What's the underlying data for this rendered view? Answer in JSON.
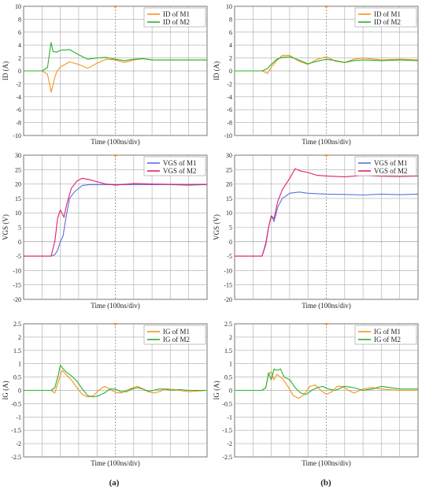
{
  "captions": [
    "(a)",
    "(b)"
  ],
  "chart_data": [
    {
      "id": "id-a",
      "type": "line",
      "xlabel": "Time (100ns/div)",
      "ylabel": "ID (A)",
      "ylim": [
        -10,
        10
      ],
      "yticks": [
        -10,
        -8,
        -6,
        -4,
        -2,
        0,
        2,
        4,
        6,
        8,
        10
      ],
      "xlim": [
        0,
        10
      ],
      "grid": true,
      "legend": "top-right",
      "series": [
        {
          "name": "ID of M1",
          "color": "#f7931e",
          "x": [
            0,
            1,
            1.3,
            1.45,
            1.5,
            1.6,
            1.7,
            1.8,
            2.0,
            2.5,
            3.0,
            3.5,
            4.0,
            4.5,
            5.0,
            5.5,
            6.0,
            6.5,
            7.0,
            8.0,
            9.0,
            10.0
          ],
          "y": [
            0,
            0,
            -0.5,
            -2.5,
            -3.3,
            -2.2,
            -1.0,
            -0.2,
            0.6,
            1.4,
            1.0,
            0.4,
            1.2,
            1.8,
            1.7,
            1.3,
            1.7,
            1.9,
            1.7,
            1.7,
            1.7,
            1.7
          ]
        },
        {
          "name": "ID of M2",
          "color": "#2bb02b",
          "x": [
            0,
            1,
            1.3,
            1.45,
            1.5,
            1.6,
            1.8,
            2.0,
            2.5,
            3.0,
            3.5,
            4.0,
            4.5,
            5.0,
            5.5,
            6.0,
            6.5,
            7.0,
            8.0,
            9.0,
            10.0
          ],
          "y": [
            0,
            0,
            0.5,
            3.5,
            4.4,
            3.0,
            2.9,
            3.2,
            3.3,
            2.5,
            1.8,
            2.0,
            2.1,
            1.8,
            1.6,
            1.8,
            1.9,
            1.7,
            1.7,
            1.7,
            1.7
          ]
        }
      ]
    },
    {
      "id": "id-b",
      "type": "line",
      "xlabel": "Time (100ns/div)",
      "ylabel": "ID (A)",
      "ylim": [
        -10,
        10
      ],
      "yticks": [
        -10,
        -8,
        -6,
        -4,
        -2,
        0,
        2,
        4,
        6,
        8,
        10
      ],
      "xlim": [
        0,
        10
      ],
      "grid": true,
      "legend": "top-right",
      "series": [
        {
          "name": "ID of M1",
          "color": "#f7931e",
          "x": [
            0,
            1.5,
            1.8,
            2.0,
            2.3,
            2.6,
            3.0,
            3.5,
            4.0,
            4.5,
            5.0,
            5.5,
            6.0,
            6.5,
            7.0,
            8.0,
            9.0,
            10.0
          ],
          "y": [
            0,
            0,
            -0.4,
            0.6,
            1.6,
            2.4,
            2.4,
            1.5,
            1.0,
            1.8,
            2.2,
            1.5,
            1.3,
            1.8,
            2.0,
            1.7,
            1.8,
            1.7
          ]
        },
        {
          "name": "ID of M2",
          "color": "#2bb02b",
          "x": [
            0,
            1.5,
            1.8,
            2.0,
            2.3,
            2.6,
            3.0,
            3.5,
            4.0,
            4.5,
            5.0,
            5.5,
            6.0,
            6.5,
            7.0,
            8.0,
            9.0,
            10.0
          ],
          "y": [
            0,
            0,
            0.4,
            1.0,
            1.8,
            2.1,
            2.2,
            1.7,
            1.1,
            1.5,
            1.8,
            1.6,
            1.3,
            1.6,
            1.7,
            1.6,
            1.7,
            1.6
          ]
        }
      ]
    },
    {
      "id": "vgs-a",
      "type": "line",
      "xlabel": "Time (100ns/div)",
      "ylabel": "VGS (V)",
      "ylim": [
        -20,
        30
      ],
      "yticks": [
        -20,
        -15,
        -10,
        -5,
        0,
        5,
        10,
        15,
        20,
        25,
        30
      ],
      "xlim": [
        0,
        10
      ],
      "grid": true,
      "legend": "top-right",
      "series": [
        {
          "name": "VGS of M1",
          "color": "#5b6fe0",
          "x": [
            0,
            1.5,
            1.7,
            1.85,
            2.0,
            2.15,
            2.3,
            2.5,
            2.8,
            3.2,
            3.6,
            4.0,
            5.0,
            6.0,
            7.0,
            8.0,
            9.0,
            10.0
          ],
          "y": [
            -5,
            -5,
            -4.5,
            -3,
            0,
            2,
            8,
            15,
            17.5,
            19.5,
            19.8,
            19.8,
            19.8,
            19.8,
            19.8,
            19.8,
            19.6,
            19.8
          ]
        },
        {
          "name": "VGS of M2",
          "color": "#e0226b",
          "x": [
            0,
            1.5,
            1.7,
            1.85,
            2.0,
            2.2,
            2.35,
            2.6,
            2.9,
            3.2,
            3.6,
            4.0,
            4.5,
            5.0,
            6.0,
            7.0,
            8.0,
            9.0,
            10.0
          ],
          "y": [
            -5,
            -5,
            0,
            8,
            11,
            8.5,
            13,
            18.5,
            21,
            22,
            21.5,
            20.8,
            20.0,
            19.6,
            20.2,
            20.0,
            19.9,
            19.8,
            19.9
          ]
        }
      ]
    },
    {
      "id": "vgs-b",
      "type": "line",
      "xlabel": "Time (100ns/div)",
      "ylabel": "VGS (V)",
      "ylim": [
        -20,
        30
      ],
      "yticks": [
        -20,
        -15,
        -10,
        -5,
        0,
        5,
        10,
        15,
        20,
        25,
        30
      ],
      "xlim": [
        0,
        10
      ],
      "grid": true,
      "legend": "top-right",
      "series": [
        {
          "name": "VGS of M1",
          "color": "#5b6fe0",
          "x": [
            0,
            1.5,
            1.7,
            1.85,
            2.0,
            2.15,
            2.35,
            2.6,
            3.0,
            3.5,
            4.0,
            5.0,
            6.0,
            7.0,
            8.0,
            9.0,
            10.0
          ],
          "y": [
            -5,
            -5,
            -1,
            5,
            9,
            7,
            12,
            15,
            16.8,
            17.2,
            16.8,
            16.5,
            16.4,
            16.2,
            16.5,
            16.3,
            16.5
          ]
        },
        {
          "name": "VGS of M2",
          "color": "#e0226b",
          "x": [
            0,
            1.5,
            1.7,
            1.85,
            2.0,
            2.15,
            2.35,
            2.6,
            3.0,
            3.3,
            3.6,
            4.0,
            4.5,
            5.0,
            6.0,
            7.0,
            8.0,
            9.0,
            10.0
          ],
          "y": [
            -5,
            -5,
            -0.5,
            5,
            9,
            8,
            14,
            18,
            22,
            25.3,
            24.5,
            24.0,
            23.0,
            22.8,
            22.5,
            23.0,
            22.7,
            22.6,
            22.8
          ]
        }
      ]
    },
    {
      "id": "ig-a",
      "type": "line",
      "xlabel": "Time (100ns/div)",
      "ylabel": "IG (A)",
      "ylim": [
        -2.5,
        2.5
      ],
      "yticks": [
        -2.5,
        -2,
        -1.5,
        -1,
        -0.5,
        0,
        0.5,
        1,
        1.5,
        2,
        2.5
      ],
      "xlim": [
        0,
        10
      ],
      "grid": true,
      "legend": "top-right",
      "series": [
        {
          "name": "IG of M1",
          "color": "#f7931e",
          "x": [
            0,
            1.5,
            1.7,
            1.9,
            2.1,
            2.3,
            2.6,
            2.9,
            3.2,
            3.5,
            3.8,
            4.1,
            4.4,
            4.7,
            5.0,
            5.3,
            5.6,
            5.9,
            6.2,
            6.5,
            6.8,
            7.1,
            7.4,
            7.7,
            8.0,
            8.5,
            9.0,
            10.0
          ],
          "y": [
            0,
            0,
            -0.1,
            0.35,
            0.75,
            0.6,
            0.4,
            0.1,
            -0.15,
            -0.25,
            -0.2,
            0.0,
            0.15,
            0.05,
            -0.08,
            -0.1,
            0.0,
            0.08,
            0.15,
            0.05,
            -0.05,
            -0.1,
            -0.05,
            0.05,
            0.05,
            0.0,
            -0.05,
            0.0
          ]
        },
        {
          "name": "IG of M2",
          "color": "#2bb02b",
          "x": [
            0,
            1.5,
            1.7,
            1.9,
            2.0,
            2.1,
            2.3,
            2.6,
            2.9,
            3.2,
            3.5,
            3.8,
            4.1,
            4.4,
            4.7,
            5.0,
            5.3,
            5.6,
            5.9,
            6.2,
            6.5,
            6.8,
            7.1,
            7.4,
            7.7,
            8.0,
            8.5,
            9.0,
            10.0
          ],
          "y": [
            0,
            0,
            0.1,
            0.6,
            0.95,
            0.85,
            0.7,
            0.55,
            0.35,
            0.05,
            -0.2,
            -0.25,
            -0.2,
            -0.1,
            0.05,
            0.05,
            -0.05,
            -0.05,
            0.05,
            0.1,
            0.05,
            -0.03,
            0.0,
            0.05,
            0.05,
            0.0,
            0.03,
            0.0,
            0.0
          ]
        }
      ]
    },
    {
      "id": "ig-b",
      "type": "line",
      "xlabel": "Time (100ns/div)",
      "ylabel": "IG (A)",
      "ylim": [
        -2.5,
        2.5
      ],
      "yticks": [
        -2.5,
        -2,
        -1.5,
        -1,
        -0.5,
        0,
        0.5,
        1,
        1.5,
        2,
        2.5
      ],
      "xlim": [
        0,
        10
      ],
      "grid": true,
      "legend": "top-right",
      "series": [
        {
          "name": "IG of M1",
          "color": "#f7931e",
          "x": [
            0,
            1.5,
            1.7,
            1.85,
            2.0,
            2.15,
            2.3,
            2.6,
            2.9,
            3.2,
            3.5,
            3.8,
            4.1,
            4.4,
            4.7,
            5.0,
            5.3,
            5.6,
            5.9,
            6.2,
            6.5,
            7.0,
            7.5,
            8.0,
            9.0,
            10.0
          ],
          "y": [
            0,
            0,
            0.1,
            0.6,
            0.7,
            0.4,
            0.6,
            0.45,
            0.15,
            -0.2,
            -0.3,
            -0.15,
            0.15,
            0.2,
            0.0,
            -0.15,
            -0.05,
            0.15,
            0.15,
            0.0,
            -0.1,
            0.05,
            0.1,
            0.05,
            0.0,
            0.0
          ]
        },
        {
          "name": "IG of M2",
          "color": "#2bb02b",
          "x": [
            0,
            1.5,
            1.7,
            1.85,
            2.0,
            2.15,
            2.3,
            2.5,
            2.7,
            3.0,
            3.3,
            3.6,
            3.9,
            4.2,
            4.5,
            4.8,
            5.1,
            5.5,
            6.0,
            6.5,
            7.0,
            7.5,
            8.0,
            8.5,
            9.0,
            10.0
          ],
          "y": [
            0,
            0,
            0.1,
            0.65,
            0.4,
            0.8,
            0.75,
            0.8,
            0.5,
            0.4,
            0.1,
            -0.1,
            -0.15,
            0.0,
            0.1,
            0.15,
            0.05,
            0.0,
            0.15,
            0.1,
            0.0,
            0.05,
            0.15,
            0.1,
            0.05,
            0.05
          ]
        }
      ]
    }
  ]
}
